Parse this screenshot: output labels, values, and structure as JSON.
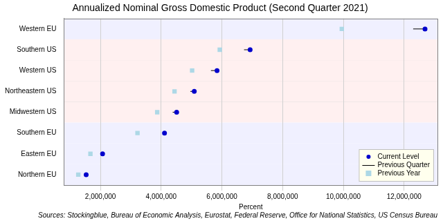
{
  "chart_data": {
    "type": "dot",
    "orientation": "horizontal",
    "title": "Annualized Nominal Gross Domestic Product (Second Quarter 2021)",
    "x_label": "Percent",
    "source": "Sources: Stockingblue, Bureau of Economic Analysis, Eurostat, Federal Reserve, Office for National Statistics, US Census Bureau",
    "categories": [
      "Western EU",
      "Southern US",
      "Western US",
      "Northeastern US",
      "Midwestern US",
      "Southern EU",
      "Eastern EU",
      "Northern EU"
    ],
    "series": [
      {
        "name": "Current Level",
        "color": "#0000cc",
        "marker": "circle",
        "values": [
          12690000,
          6930000,
          5840000,
          5090000,
          4510000,
          4110000,
          2070000,
          1530000
        ]
      },
      {
        "name": "Previous Quarter",
        "color": "#000000",
        "line_style": "solid",
        "values": [
          12300000,
          6730000,
          5640000,
          4960000,
          4380000,
          4070000,
          2020000,
          1490000
        ]
      },
      {
        "name": "Previous Year",
        "color": "#add8e6",
        "marker": "square",
        "values": [
          9950000,
          5930000,
          5020000,
          4440000,
          3870000,
          3220000,
          1670000,
          1270000
        ]
      }
    ],
    "xlim": [
      800000,
      13100000
    ],
    "xticks": [
      {
        "value": 2000000,
        "label": "2,000,000"
      },
      {
        "value": 4000000,
        "label": "4,000,000"
      },
      {
        "value": 6000000,
        "label": "6,000,000"
      },
      {
        "value": 8000000,
        "label": "8,000,000"
      },
      {
        "value": 10000000,
        "label": "10,000,000"
      },
      {
        "value": 12000000,
        "label": "12,000,000"
      }
    ],
    "grid": true,
    "legend": "lower right"
  }
}
